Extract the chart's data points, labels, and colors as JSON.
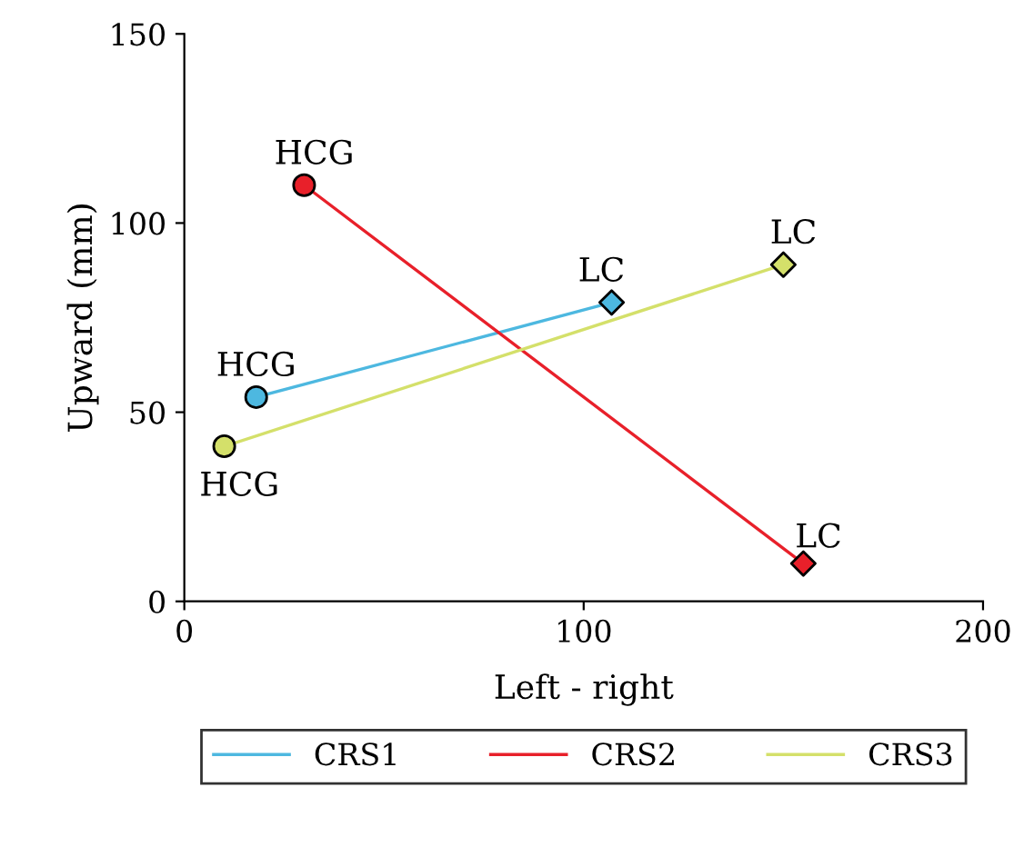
{
  "chart_data": {
    "type": "line",
    "xlabel": "Left - right",
    "ylabel": "Upward (mm)",
    "xlim": [
      0,
      200
    ],
    "xticks": [
      0,
      100,
      200
    ],
    "ylim": [
      0,
      150
    ],
    "yticks": [
      0,
      50,
      100,
      150
    ],
    "grid": false,
    "legend": "bottom",
    "line_style": "solid",
    "series": [
      {
        "name": "CRS1",
        "color": "#4db8e0",
        "x": [
          18,
          107
        ],
        "values": [
          54,
          79
        ]
      },
      {
        "name": "CRS2",
        "color": "#e8202a",
        "x": [
          30,
          155
        ],
        "values": [
          110,
          10
        ]
      },
      {
        "name": "CRS3",
        "color": "#d4e06a",
        "x": [
          10,
          150
        ],
        "values": [
          41,
          89
        ]
      },
      {
        "type": "scatter",
        "marker": "circle",
        "x": [
          18,
          30,
          10
        ],
        "values": [
          54,
          110,
          41
        ],
        "colors": [
          "#4db8e0",
          "#e8202a",
          "#d4e06a"
        ]
      },
      {
        "type": "scatter",
        "marker": "diamond",
        "x": [
          107,
          155,
          150
        ],
        "values": [
          79,
          10,
          89
        ],
        "colors": [
          "#4db8e0",
          "#e8202a",
          "#d4e06a"
        ]
      }
    ],
    "annotations": [
      {
        "text": "HCG",
        "x": 18,
        "y": 54
      },
      {
        "text": "LC",
        "x": 107,
        "y": 79
      },
      {
        "text": "HCG",
        "x": 30,
        "y": 110
      },
      {
        "text": "LC",
        "x": 155,
        "y": 10
      },
      {
        "text": "HCG",
        "x": 10,
        "y": 41
      },
      {
        "text": "LC",
        "x": 150,
        "y": 89
      }
    ]
  }
}
